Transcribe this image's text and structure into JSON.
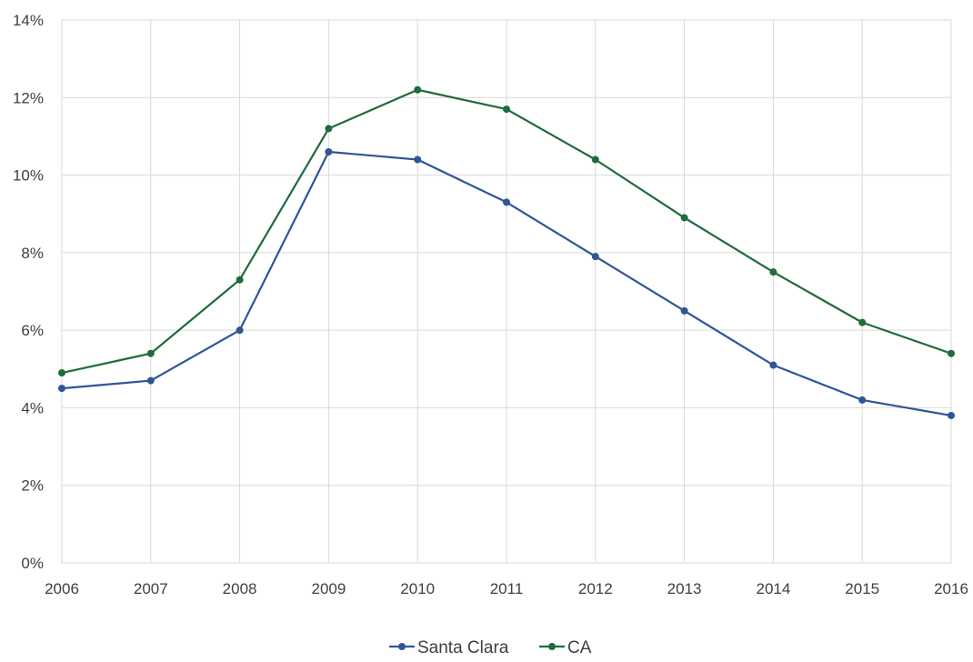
{
  "chart_data": {
    "type": "line",
    "title": "",
    "xlabel": "",
    "ylabel": "",
    "categories": [
      "2006",
      "2007",
      "2008",
      "2009",
      "2010",
      "2011",
      "2012",
      "2013",
      "2014",
      "2015",
      "2016"
    ],
    "ylim": [
      0,
      14
    ],
    "yticks": [
      0,
      2,
      4,
      6,
      8,
      10,
      12,
      14
    ],
    "ytick_labels": [
      "0%",
      "2%",
      "4%",
      "6%",
      "8%",
      "10%",
      "12%",
      "14%"
    ],
    "grid": true,
    "legend_position": "bottom",
    "series": [
      {
        "name": "Santa Clara",
        "color": "#2f5597",
        "values": [
          4.5,
          4.7,
          6.0,
          10.6,
          10.4,
          9.3,
          7.9,
          6.5,
          5.1,
          4.2,
          3.8
        ]
      },
      {
        "name": "CA",
        "color": "#1e6b3c",
        "values": [
          4.9,
          5.4,
          7.3,
          11.2,
          12.2,
          11.7,
          10.4,
          8.9,
          7.5,
          6.2,
          5.4
        ]
      }
    ]
  }
}
